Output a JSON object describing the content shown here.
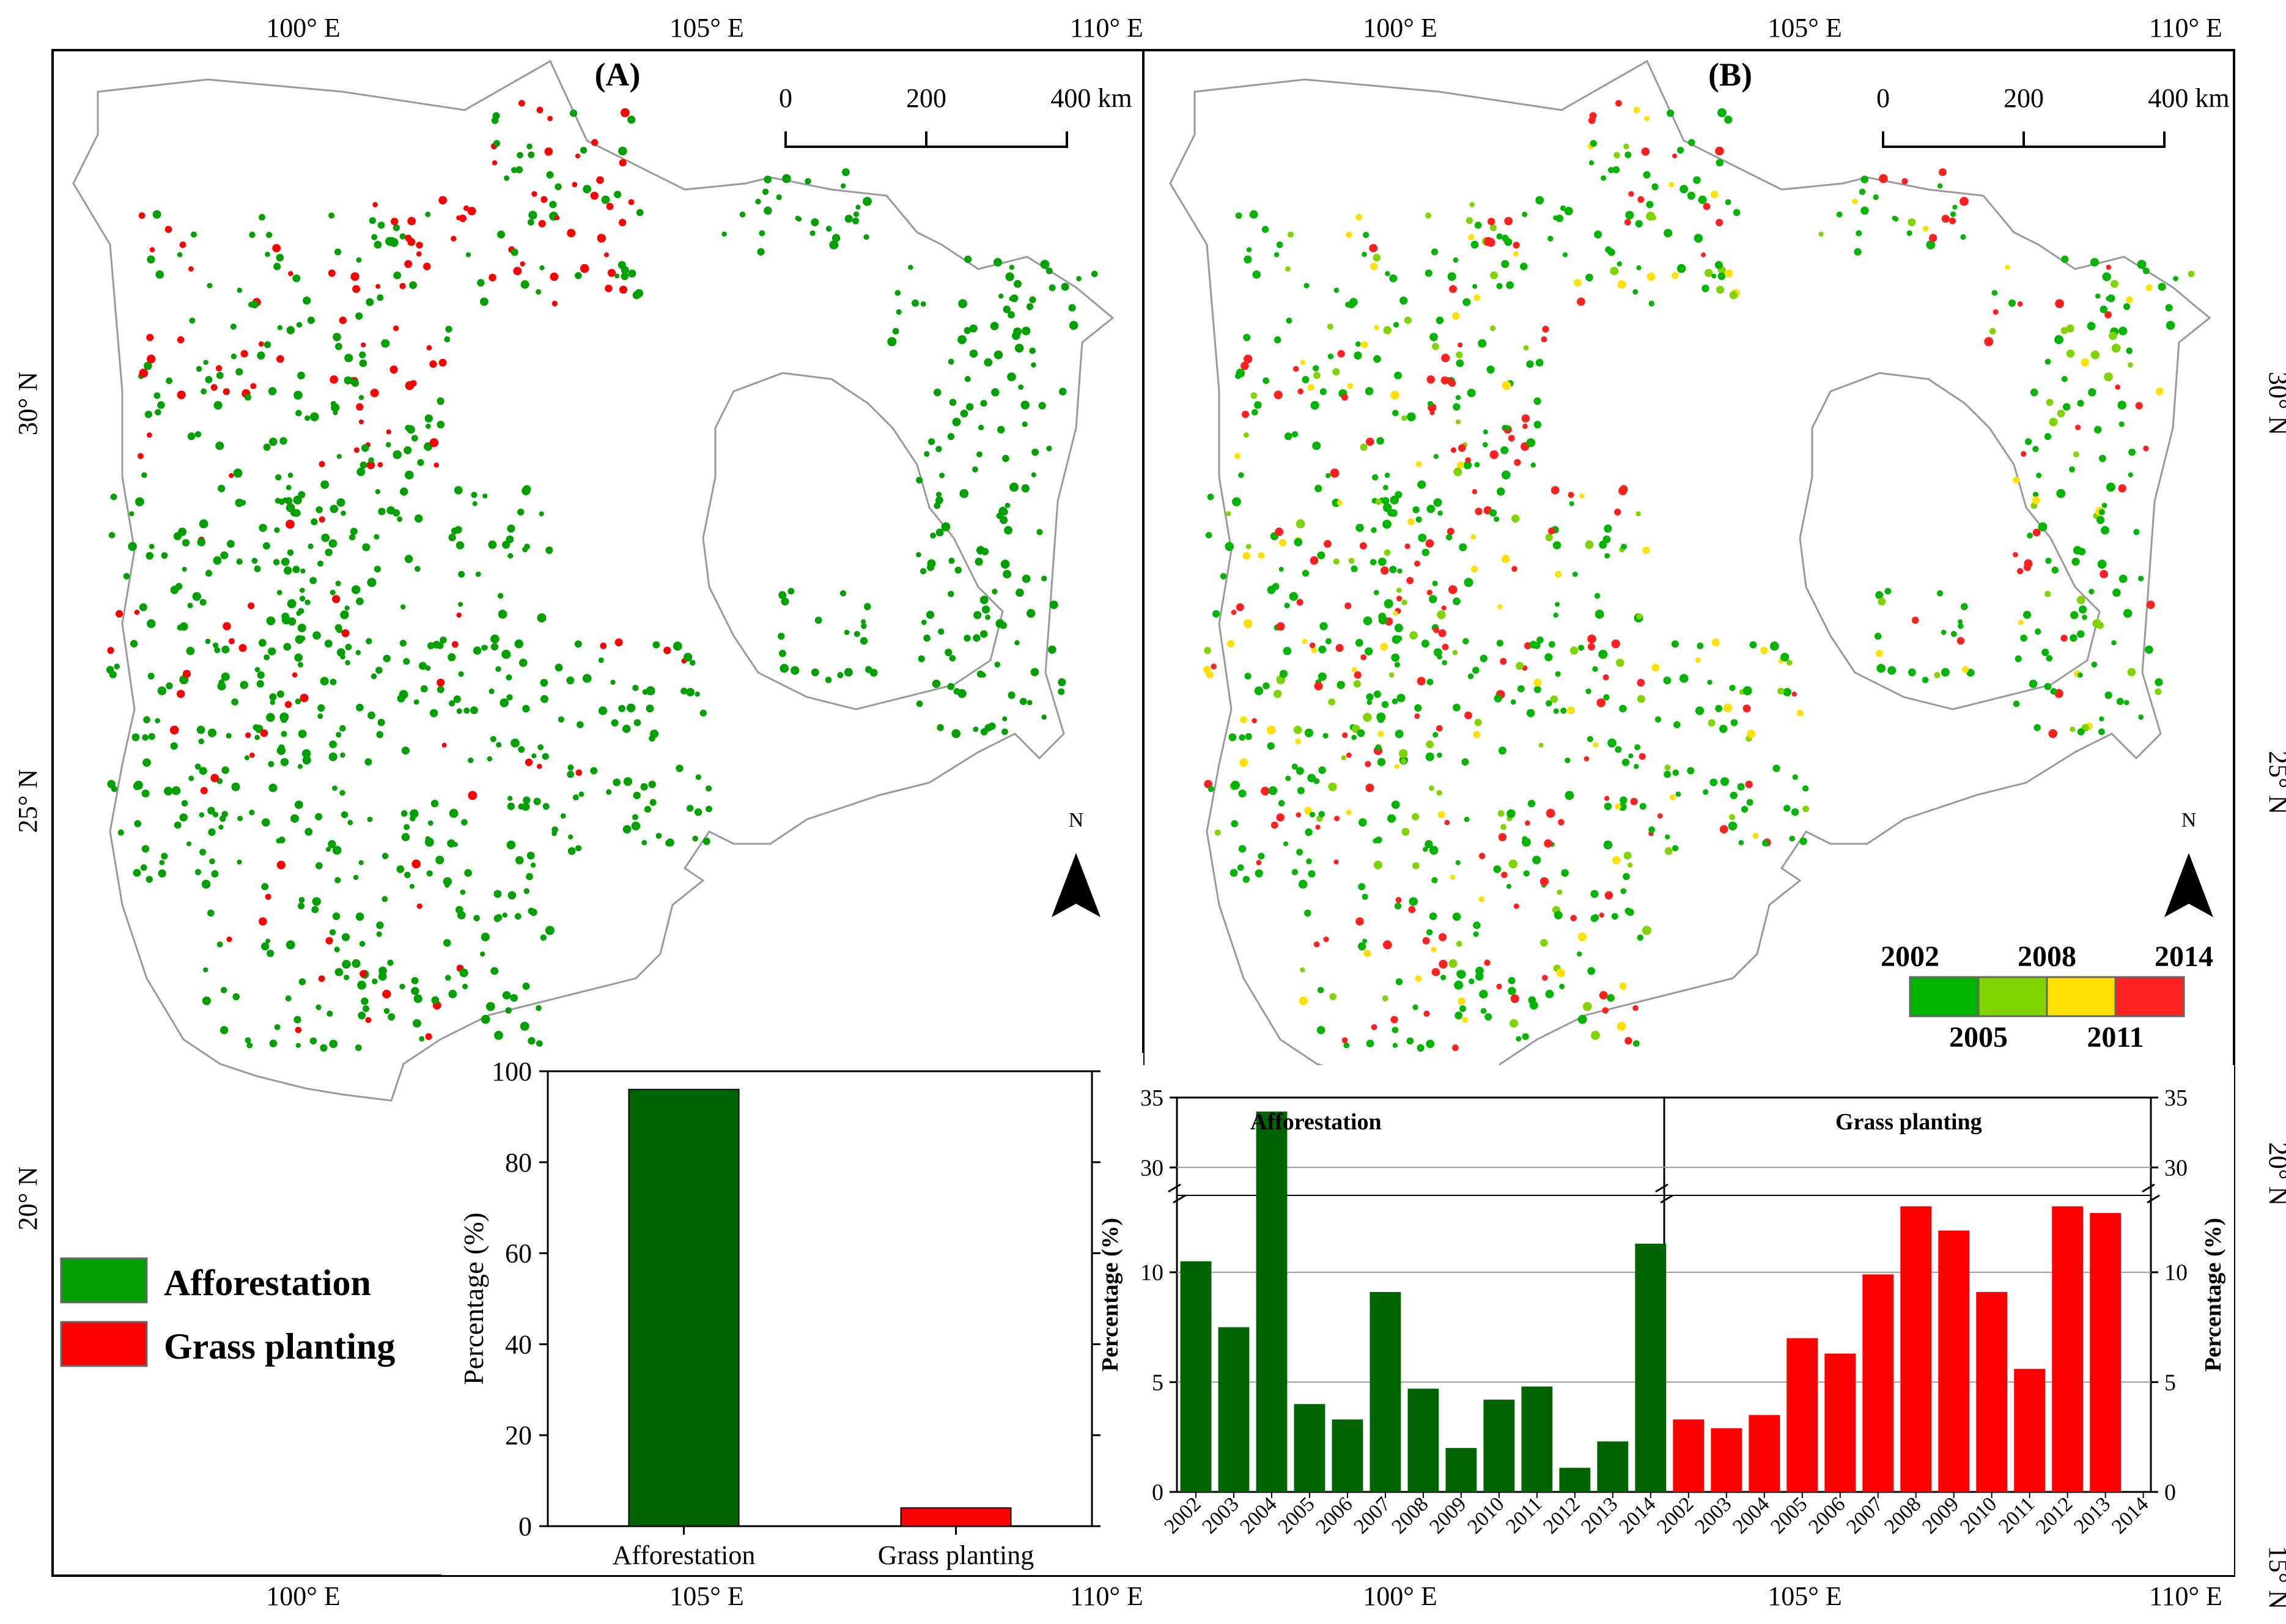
{
  "figure": {
    "panel_a_label": "(A)",
    "panel_b_label": "(B)",
    "lon_ticks": [
      "100° E",
      "105° E",
      "110° E"
    ],
    "lat_ticks": [
      "30° N",
      "25° N",
      "20° N",
      "15° N"
    ],
    "scale_bar": {
      "labels": [
        "0",
        "200",
        "400 km"
      ]
    },
    "north_label": "N",
    "legend_a": {
      "items": [
        {
          "label": "Afforestation",
          "color": "#00a000"
        },
        {
          "label": "Grass planting",
          "color": "#ff0000"
        }
      ]
    },
    "legend_b": {
      "top_labels": [
        "2002",
        "2008",
        "2014"
      ],
      "bottom_labels": [
        "2005",
        "2011"
      ],
      "colors": [
        "#00b400",
        "#7fd400",
        "#ffe000",
        "#ff2020"
      ]
    }
  },
  "chart_data": [
    {
      "type": "bar",
      "id": "inset-a",
      "categories": [
        "Afforestation",
        "Grass planting"
      ],
      "values": [
        96,
        4
      ],
      "colors": [
        "#006400",
        "#ff0000"
      ],
      "ylabel": "Percentage (%)",
      "ylim": [
        0,
        100
      ],
      "yticks": [
        0,
        20,
        40,
        60,
        80,
        100
      ]
    },
    {
      "type": "bar",
      "id": "inset-b",
      "ylabel": "Percentage (%)",
      "broken_axis": {
        "lower": [
          0,
          13.5
        ],
        "upper": [
          28,
          35
        ]
      },
      "yticks_lower": [
        0,
        5,
        10
      ],
      "yticks_upper": [
        30,
        35
      ],
      "series": [
        {
          "name": "Afforestation",
          "color": "#006400",
          "categories": [
            "2002",
            "2003",
            "2004",
            "2005",
            "2006",
            "2007",
            "2008",
            "2009",
            "2010",
            "2011",
            "2012",
            "2013",
            "2014"
          ],
          "values": [
            10.5,
            7.5,
            34,
            4,
            3.3,
            9.1,
            4.7,
            2,
            4.2,
            4.8,
            1.1,
            2.3,
            11.3
          ]
        },
        {
          "name": "Grass planting",
          "color": "#ff0000",
          "categories": [
            "2002",
            "2003",
            "2004",
            "2005",
            "2006",
            "2007",
            "2008",
            "2009",
            "2010",
            "2011",
            "2012",
            "2013",
            "2014"
          ],
          "values": [
            3.3,
            2.9,
            3.5,
            7,
            6.3,
            9.9,
            13,
            11.9,
            9.1,
            5.6,
            13,
            12.7,
            0
          ]
        }
      ]
    }
  ]
}
